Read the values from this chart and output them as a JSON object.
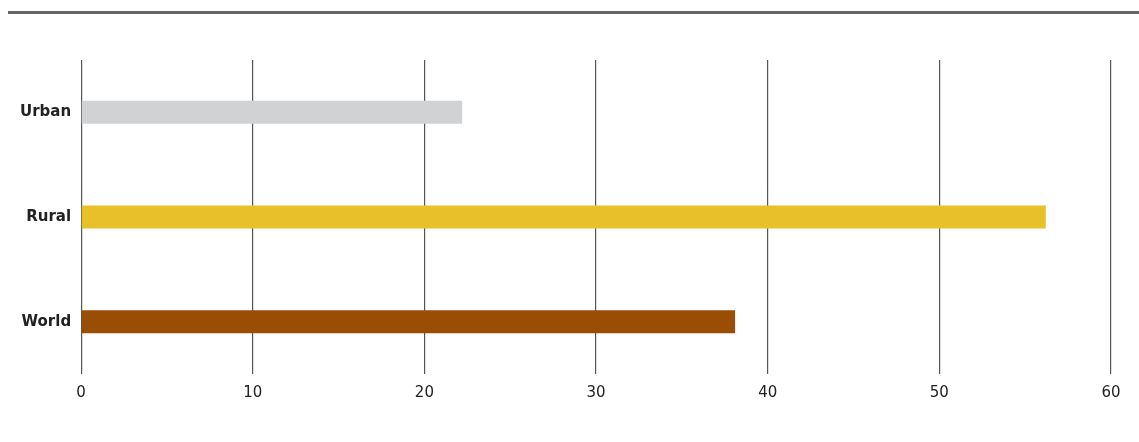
{
  "chart_data": {
    "type": "bar",
    "orientation": "horizontal",
    "categories": [
      "Urban",
      "Rural",
      "World"
    ],
    "values": [
      22.2,
      56.2,
      38.1
    ],
    "colors": [
      "#d1d2d4",
      "#e8c12a",
      "#9a4e05"
    ],
    "xlim": [
      0,
      60
    ],
    "xticks": [
      0,
      10,
      20,
      30,
      40,
      50,
      60
    ],
    "grid": "x",
    "legend": false
  }
}
